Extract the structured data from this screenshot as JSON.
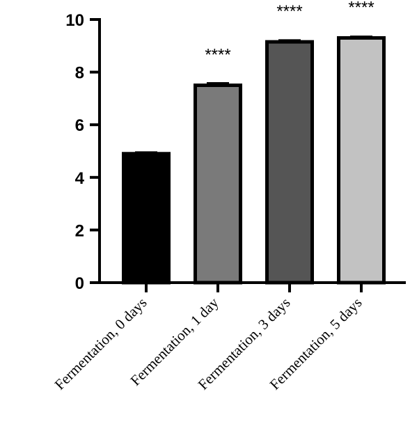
{
  "chart_data": {
    "type": "bar",
    "categories": [
      "Fermentation, 0 days",
      "Fermentation, 1 day",
      "Fermentation, 3 days",
      "Fermentation, 5 days"
    ],
    "values": [
      4.9,
      7.5,
      9.15,
      9.3
    ],
    "errors": [
      0.05,
      0.08,
      0.06,
      0.05
    ],
    "significance": [
      "",
      "****",
      "****",
      "****"
    ],
    "bar_colors": [
      "#000000",
      "#7a7a7a",
      "#555555",
      "#c2c2c2"
    ],
    "ylim": [
      0,
      10
    ],
    "yticks": [
      "0",
      "2",
      "4",
      "6",
      "8",
      "10"
    ],
    "title": "",
    "xlabel": "",
    "ylabel": "",
    "grid": false
  }
}
